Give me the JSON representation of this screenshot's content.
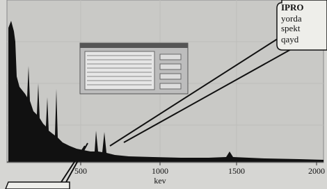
{
  "plot": {
    "x_tick_labels": [
      "500",
      "1000",
      "1500",
      "2000"
    ],
    "x_axis_label": "kev"
  },
  "callout": {
    "lines": [
      "IPRO",
      "yorda",
      "spekt",
      "qayd"
    ]
  }
}
